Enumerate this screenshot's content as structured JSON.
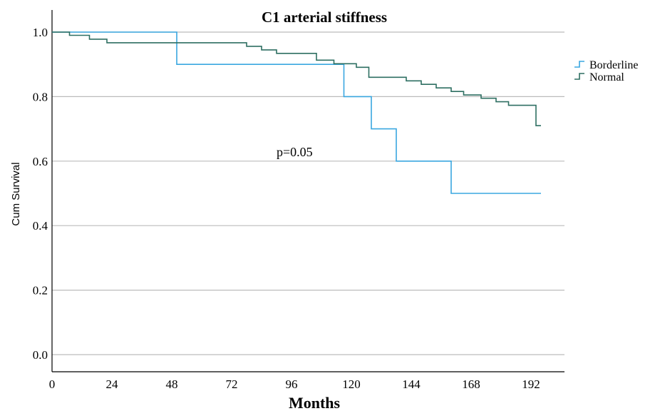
{
  "chart_data": {
    "type": "line",
    "title": "C1 arterial stiffness",
    "xlabel": "Months",
    "ylabel": "Cum Survival",
    "xlim": [
      0,
      204
    ],
    "ylim": [
      0,
      1.05
    ],
    "x_ticks": [
      "0",
      "24",
      "48",
      "72",
      "96",
      "120",
      "144",
      "168",
      "192"
    ],
    "y_ticks": [
      "0.0",
      "0.2",
      "0.4",
      "0.6",
      "0.8",
      "1.0"
    ],
    "grid": "horizontal",
    "legend_position": "right",
    "annotation": "p=0.05",
    "series": [
      {
        "name": "Borderline",
        "color": "#3aa7e0",
        "step": true,
        "points": [
          [
            0,
            1.0
          ],
          [
            50,
            1.0
          ],
          [
            50,
            0.9
          ],
          [
            117,
            0.9
          ],
          [
            117,
            0.8
          ],
          [
            128,
            0.8
          ],
          [
            128,
            0.7
          ],
          [
            138,
            0.7
          ],
          [
            138,
            0.6
          ],
          [
            160,
            0.6
          ],
          [
            160,
            0.5
          ],
          [
            196,
            0.5
          ]
        ]
      },
      {
        "name": "Normal",
        "color": "#2e6f62",
        "step": true,
        "points": [
          [
            0,
            1.0
          ],
          [
            7,
            1.0
          ],
          [
            7,
            0.99
          ],
          [
            15,
            0.99
          ],
          [
            15,
            0.978
          ],
          [
            22,
            0.978
          ],
          [
            22,
            0.967
          ],
          [
            78,
            0.967
          ],
          [
            78,
            0.956
          ],
          [
            84,
            0.956
          ],
          [
            84,
            0.945
          ],
          [
            90,
            0.945
          ],
          [
            90,
            0.934
          ],
          [
            106,
            0.934
          ],
          [
            106,
            0.913
          ],
          [
            113,
            0.913
          ],
          [
            113,
            0.902
          ],
          [
            122,
            0.902
          ],
          [
            122,
            0.891
          ],
          [
            127,
            0.891
          ],
          [
            127,
            0.86
          ],
          [
            142,
            0.86
          ],
          [
            142,
            0.849
          ],
          [
            148,
            0.849
          ],
          [
            148,
            0.838
          ],
          [
            154,
            0.838
          ],
          [
            154,
            0.827
          ],
          [
            160,
            0.827
          ],
          [
            160,
            0.816
          ],
          [
            165,
            0.816
          ],
          [
            165,
            0.805
          ],
          [
            172,
            0.805
          ],
          [
            172,
            0.795
          ],
          [
            178,
            0.795
          ],
          [
            178,
            0.784
          ],
          [
            183,
            0.784
          ],
          [
            183,
            0.773
          ],
          [
            194,
            0.773
          ],
          [
            194,
            0.71
          ],
          [
            196,
            0.71
          ]
        ]
      }
    ]
  }
}
